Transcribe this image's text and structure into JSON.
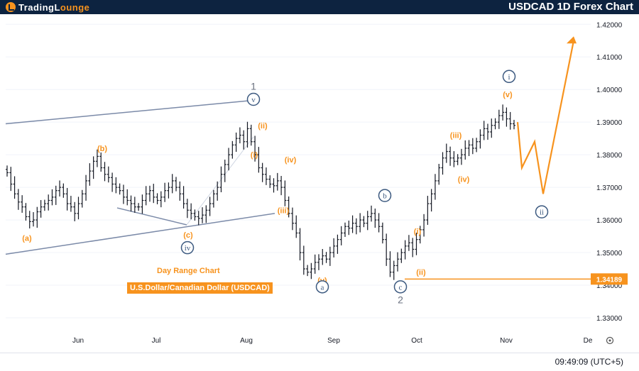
{
  "header": {
    "logo_text_a": "TradingL",
    "logo_text_b": "ounge",
    "title": "USDCAD 1D Forex Chart"
  },
  "overlay": {
    "line1": "Day Range Chart",
    "line2": "U.S.Dollar/Canadian Dollar (USDCAD)"
  },
  "footer": {
    "time": "09:49:09 (UTC+5)"
  },
  "colors": {
    "orange": "#f7931e",
    "navy": "#3d5a80",
    "candle": "#131722",
    "channel": "#7b8aa8",
    "header_bg": "#0d2340"
  },
  "chart_data": {
    "type": "candlestick",
    "x_ticks": [
      "Jun",
      "Jul",
      "Aug",
      "Sep",
      "Oct",
      "Nov",
      "De"
    ],
    "y_ticks": [
      "1.42000",
      "1.41000",
      "1.40000",
      "1.39000",
      "1.38000",
      "1.37000",
      "1.36000",
      "1.35000",
      "1.34000",
      "1.33000"
    ],
    "ylim": [
      1.3263,
      1.4231
    ],
    "current_price_label": "1.34189",
    "current_price": 1.34189,
    "closes": [
      1.3745,
      1.371,
      1.368,
      1.3655,
      1.364,
      1.361,
      1.3595,
      1.36,
      1.3625,
      1.364,
      1.365,
      1.366,
      1.367,
      1.369,
      1.37,
      1.368,
      1.365,
      1.364,
      1.362,
      1.365,
      1.368,
      1.372,
      1.375,
      1.378,
      1.3795,
      1.376,
      1.374,
      1.373,
      1.371,
      1.37,
      1.369,
      1.367,
      1.366,
      1.365,
      1.364,
      1.364,
      1.366,
      1.368,
      1.369,
      1.367,
      1.366,
      1.367,
      1.369,
      1.37,
      1.372,
      1.37,
      1.368,
      1.365,
      1.363,
      1.362,
      1.361,
      1.3605,
      1.3615,
      1.363,
      1.365,
      1.368,
      1.37,
      1.374,
      1.377,
      1.38,
      1.383,
      1.385,
      1.386,
      1.384,
      1.388,
      1.384,
      1.38,
      1.376,
      1.374,
      1.3725,
      1.371,
      1.3705,
      1.372,
      1.37,
      1.366,
      1.362,
      1.359,
      1.356,
      1.35,
      1.345,
      1.344,
      1.345,
      1.347,
      1.348,
      1.349,
      1.348,
      1.35,
      1.352,
      1.354,
      1.356,
      1.358,
      1.3575,
      1.359,
      1.358,
      1.36,
      1.359,
      1.361,
      1.362,
      1.36,
      1.358,
      1.354,
      1.348,
      1.344,
      1.346,
      1.348,
      1.35,
      1.352,
      1.353,
      1.351,
      1.354,
      1.357,
      1.36,
      1.365,
      1.368,
      1.372,
      1.376,
      1.379,
      1.381,
      1.379,
      1.378,
      1.379,
      1.38,
      1.382,
      1.383,
      1.382,
      1.384,
      1.386,
      1.388,
      1.387,
      1.389,
      1.39,
      1.392,
      1.393,
      1.391,
      1.3895,
      1.389
    ],
    "projection": [
      [
        1.39,
        null
      ],
      [
        1.376,
        2
      ],
      [
        1.384,
        5
      ],
      [
        1.368,
        8
      ],
      [
        1.415,
        13
      ]
    ],
    "waves": [
      {
        "label": "1",
        "style": "plain-gray",
        "price": 1.401
      },
      {
        "label": "v",
        "style": "circle-navy",
        "price": 1.397
      },
      {
        "label": "(ii)",
        "style": "orange",
        "price": 1.389
      },
      {
        "label": "(i)",
        "style": "orange",
        "price": 1.38
      },
      {
        "label": "(iv)",
        "style": "orange",
        "price": 1.3785
      },
      {
        "label": "(iii)",
        "style": "orange",
        "price": 1.363
      },
      {
        "label": "(a)",
        "style": "orange",
        "price": 1.3545
      },
      {
        "label": "(b)",
        "style": "orange",
        "price": 1.382
      },
      {
        "label": "(c)",
        "style": "orange",
        "price": 1.3555
      },
      {
        "label": "iv",
        "style": "circle-navy",
        "price": 1.3515
      },
      {
        "label": "(v)",
        "style": "orange",
        "price": 1.3415
      },
      {
        "label": "a",
        "style": "circle-navy",
        "price": 1.3395
      },
      {
        "label": "b",
        "style": "circle-navy",
        "price": 1.3675
      },
      {
        "label": "c",
        "style": "circle-navy",
        "price": 1.3395
      },
      {
        "label": "2",
        "style": "plain-gray",
        "price": 1.3355
      },
      {
        "label": "(i)",
        "style": "orange",
        "price": 1.3565
      },
      {
        "label": "(ii)",
        "style": "orange",
        "price": 1.344
      },
      {
        "label": "(iii)",
        "style": "orange",
        "price": 1.386
      },
      {
        "label": "(iv)",
        "style": "orange",
        "price": 1.3725
      },
      {
        "label": "i",
        "style": "circle-navy",
        "price": 1.404
      },
      {
        "label": "(v)",
        "style": "orange",
        "price": 1.3985
      },
      {
        "label": "ii",
        "style": "circle-navy",
        "price": 1.3625
      }
    ]
  }
}
